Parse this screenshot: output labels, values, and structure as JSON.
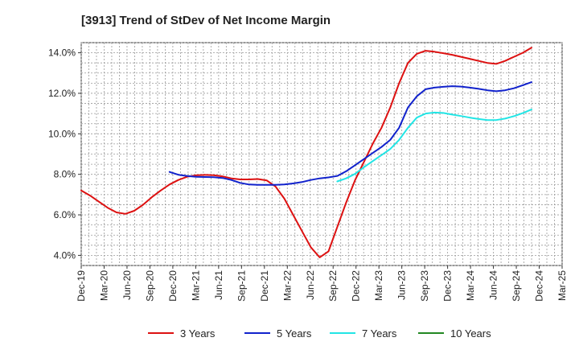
{
  "chart_data": {
    "type": "line",
    "title": "[3913]  Trend of StDev of Net Income Margin",
    "xlabel": "",
    "ylabel": "",
    "x_tick_labels": [
      "Dec-19",
      "Mar-20",
      "Jun-20",
      "Sep-20",
      "Dec-20",
      "Mar-21",
      "Jun-21",
      "Sep-21",
      "Dec-21",
      "Mar-22",
      "Jun-22",
      "Sep-22",
      "Dec-22",
      "Mar-23",
      "Jun-23",
      "Sep-23",
      "Dec-23",
      "Mar-24",
      "Jun-24",
      "Sep-24",
      "Dec-24",
      "Mar-25"
    ],
    "y_ticks": [
      4.0,
      6.0,
      8.0,
      10.0,
      12.0,
      14.0
    ],
    "y_tick_labels": [
      "4.0%",
      "6.0%",
      "8.0%",
      "10.0%",
      "12.0%",
      "14.0%"
    ],
    "ylim": [
      3.5,
      14.5
    ],
    "grid": true,
    "legend_position": "bottom",
    "series": [
      {
        "name": "3 Years",
        "color": "#dd1111",
        "values": [
          7.2,
          6.95,
          6.65,
          6.35,
          6.12,
          6.05,
          6.2,
          6.5,
          6.87,
          7.2,
          7.5,
          7.72,
          7.88,
          7.95,
          7.97,
          7.96,
          7.9,
          7.8,
          7.75,
          7.75,
          7.77,
          7.7,
          7.4,
          6.8,
          6.0,
          5.2,
          4.4,
          3.9,
          4.2,
          5.4,
          6.6,
          7.7,
          8.6,
          9.5,
          10.3,
          11.3,
          12.5,
          13.5,
          13.95,
          14.1,
          14.05,
          13.98,
          13.9,
          13.8,
          13.7,
          13.6,
          13.5,
          13.45,
          13.6,
          13.8,
          14.0,
          14.25
        ]
      },
      {
        "name": "5 Years",
        "color": "#1122cc",
        "values": [
          null,
          null,
          null,
          null,
          null,
          null,
          null,
          null,
          null,
          null,
          8.12,
          7.98,
          7.92,
          7.88,
          7.87,
          7.86,
          7.82,
          7.72,
          7.58,
          7.5,
          7.48,
          7.48,
          7.48,
          7.5,
          7.55,
          7.62,
          7.72,
          7.8,
          7.85,
          7.92,
          8.15,
          8.45,
          8.75,
          9.05,
          9.35,
          9.7,
          10.3,
          11.3,
          11.85,
          12.2,
          12.28,
          12.32,
          12.35,
          12.33,
          12.28,
          12.22,
          12.15,
          12.1,
          12.15,
          12.25,
          12.4,
          12.55
        ]
      },
      {
        "name": "7 Years",
        "color": "#22e5e5",
        "values": [
          null,
          null,
          null,
          null,
          null,
          null,
          null,
          null,
          null,
          null,
          null,
          null,
          null,
          null,
          null,
          null,
          null,
          null,
          null,
          null,
          null,
          null,
          null,
          null,
          null,
          null,
          null,
          null,
          null,
          7.65,
          7.8,
          8.02,
          8.35,
          8.65,
          8.95,
          9.25,
          9.7,
          10.3,
          10.8,
          11.0,
          11.05,
          11.03,
          10.95,
          10.88,
          10.8,
          10.73,
          10.68,
          10.68,
          10.75,
          10.87,
          11.02,
          11.2
        ]
      },
      {
        "name": "10 Years",
        "color": "#228822",
        "values": []
      }
    ]
  }
}
